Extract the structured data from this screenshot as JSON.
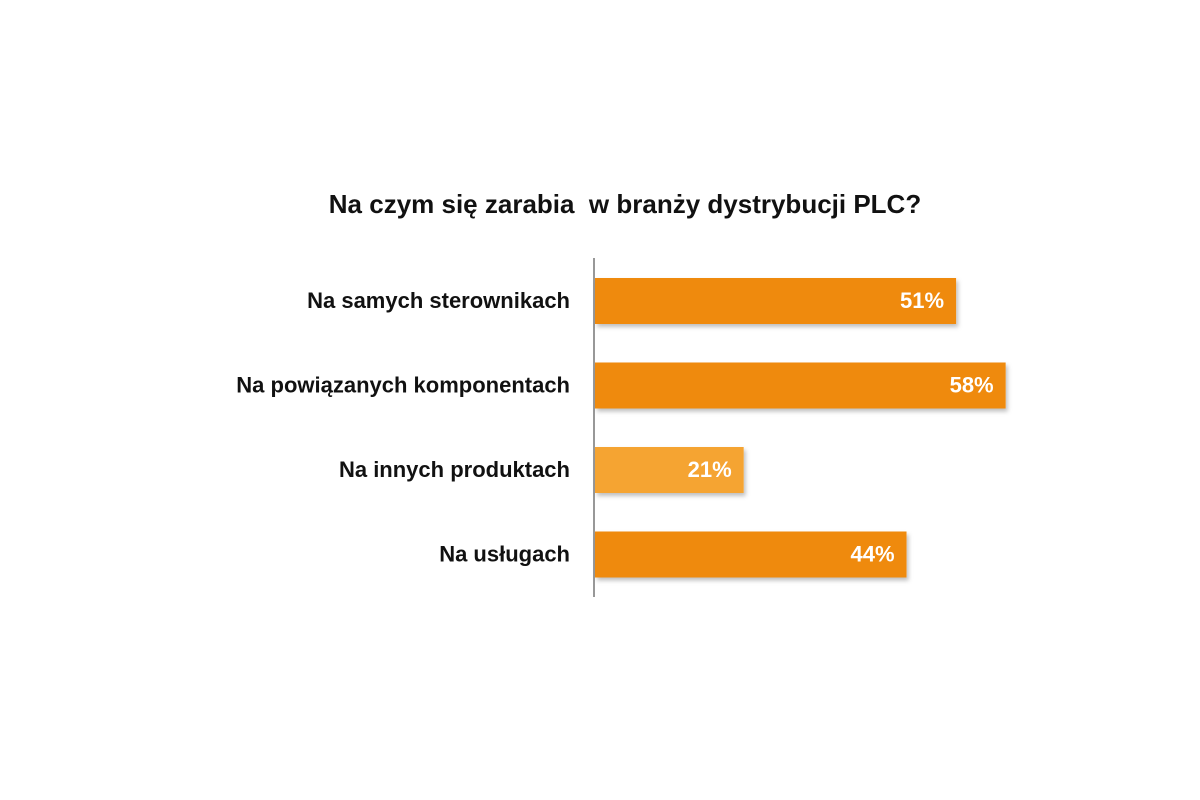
{
  "chart_data": {
    "type": "bar",
    "orientation": "horizontal",
    "title": "Na czym się zarabia  w branży dystrybucji PLC?",
    "categories": [
      "Na samych sterownikach",
      "Na powiązanych komponentach",
      "Na innych produktach",
      "Na usługach"
    ],
    "values": [
      51,
      58,
      21,
      44
    ],
    "value_labels": [
      "51%",
      "58%",
      "21%",
      "44%"
    ],
    "colors": [
      "#ef8a0a",
      "#ef8a0a",
      "#f5a431",
      "#ef8a0a"
    ]
  }
}
